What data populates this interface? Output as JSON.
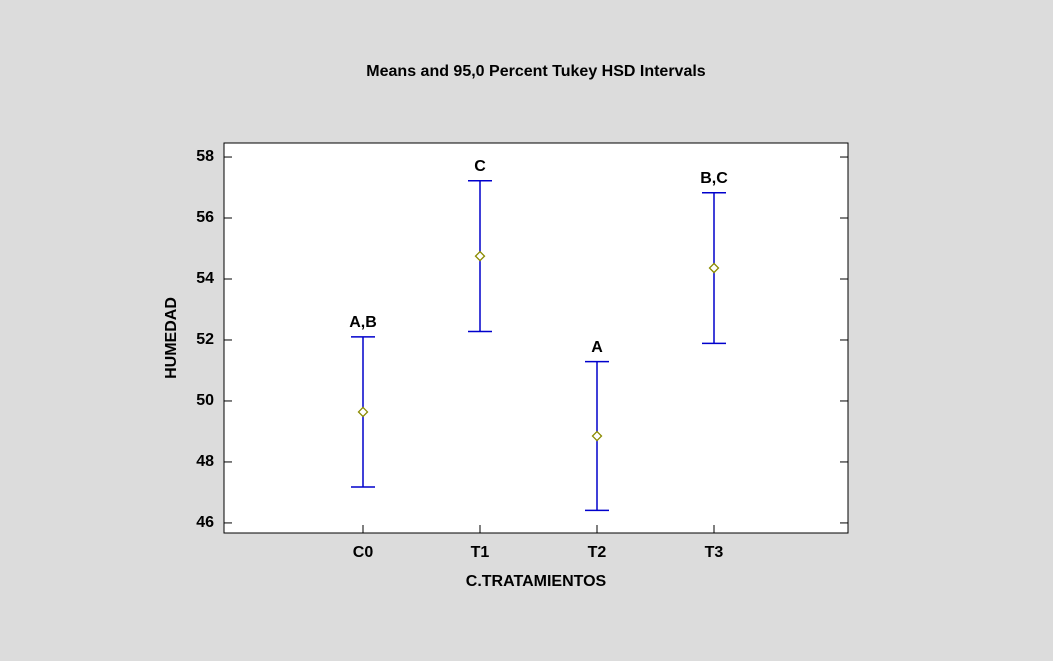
{
  "chart_data": {
    "type": "errorbar",
    "title": "Means and 95,0 Percent Tukey HSD Intervals",
    "x_label": "C.TRATAMIENTOS",
    "y_label": "HUMEDAD",
    "categories": [
      "C0",
      "T1",
      "T2",
      "T3"
    ],
    "values": [
      49.64,
      54.75,
      48.85,
      54.36
    ],
    "errors": [
      2.46,
      2.47,
      2.44,
      2.47
    ],
    "group_labels": [
      "A,B",
      "C",
      "A",
      "B,C"
    ],
    "ylim": [
      45.67,
      58.46
    ],
    "yticks": [
      46,
      48,
      50,
      52,
      54,
      56,
      58
    ],
    "bar_color": "#0000cc",
    "marker_color": "#8b8b00"
  }
}
